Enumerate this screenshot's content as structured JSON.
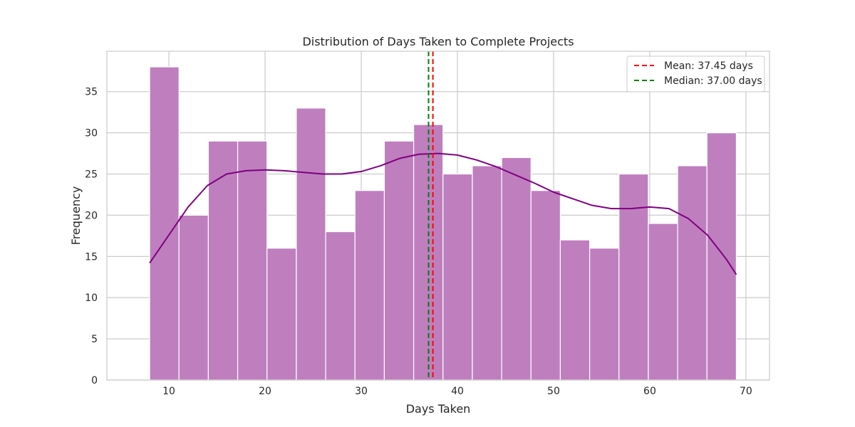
{
  "chart_data": {
    "type": "bar",
    "title": "Distribution of Days Taken to Complete Projects",
    "xlabel": "Days Taken",
    "ylabel": "Frequency",
    "xlim": [
      3.55,
      72.45
    ],
    "ylim": [
      0,
      39.9
    ],
    "xticks": [
      10,
      20,
      30,
      40,
      50,
      60,
      70
    ],
    "yticks": [
      0,
      5,
      10,
      15,
      20,
      25,
      30,
      35
    ],
    "grid": true,
    "legend_position": "top-right",
    "histogram": {
      "bin_start": 8,
      "bin_end": 69,
      "bin_count": 20,
      "counts": [
        38,
        20,
        29,
        29,
        16,
        33,
        18,
        23,
        29,
        31,
        25,
        26,
        27,
        23,
        17,
        16,
        25,
        19,
        26,
        30
      ],
      "color": "#bf7fbf"
    },
    "kde": {
      "x": [
        8,
        10,
        12,
        14,
        16,
        18,
        20,
        22,
        24,
        26,
        28,
        30,
        32,
        34,
        36,
        38,
        40,
        42,
        44,
        46,
        48,
        50,
        52,
        54,
        56,
        58,
        60,
        62,
        64,
        66,
        68,
        69
      ],
      "y": [
        14.2,
        17.6,
        21.0,
        23.6,
        25.0,
        25.4,
        25.5,
        25.4,
        25.2,
        25.0,
        25.0,
        25.3,
        26.0,
        26.9,
        27.4,
        27.5,
        27.3,
        26.7,
        25.9,
        24.9,
        23.9,
        22.8,
        22.0,
        21.2,
        20.8,
        20.8,
        21.0,
        20.8,
        19.6,
        17.6,
        14.6,
        12.8
      ],
      "color": "#800080"
    },
    "lines": [
      {
        "label": "Mean: 37.45 days",
        "x": 37.45,
        "color": "#ff0000"
      },
      {
        "label": "Median: 37.00 days",
        "x": 37.0,
        "color": "#008000"
      }
    ]
  }
}
